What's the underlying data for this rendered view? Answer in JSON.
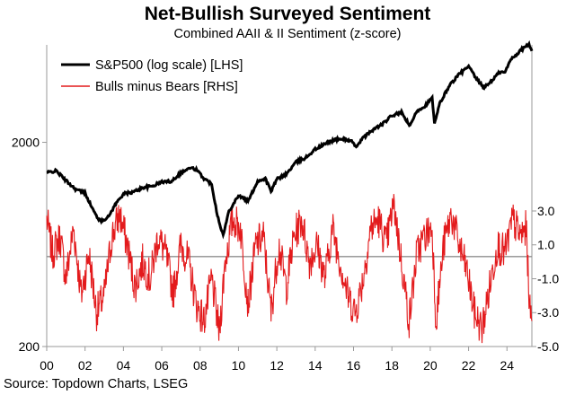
{
  "chart_data": {
    "type": "line",
    "title": "Net-Bullish Surveyed Sentiment",
    "subtitle": "Combined AAII & II Sentiment (z-score)",
    "source": "Source: Topdown Charts, LSEG",
    "x_tick_labels": [
      "00",
      "02",
      "04",
      "06",
      "08",
      "10",
      "12",
      "14",
      "16",
      "18",
      "20",
      "22",
      "24"
    ],
    "x_tick_years": [
      2000,
      2002,
      2004,
      2006,
      2008,
      2010,
      2012,
      2014,
      2016,
      2018,
      2020,
      2022,
      2024
    ],
    "xlim": [
      2000,
      2025.3
    ],
    "left_axis": {
      "scale": "log",
      "ylim": [
        200,
        6000
      ],
      "ticks": [
        200,
        2000
      ],
      "tick_labels": [
        "200",
        "2000"
      ]
    },
    "right_axis": {
      "scale": "linear",
      "ylim": [
        -5,
        12.8
      ],
      "ticks": [
        3,
        1,
        -1,
        -3,
        -5
      ],
      "tick_labels": [
        "3.0",
        "1.0",
        "-1.0",
        "-3.0",
        "-5.0"
      ]
    },
    "legend": {
      "position": "top-left"
    },
    "series": [
      {
        "name": "S&P500 (log scale) [LHS]",
        "axis": "left",
        "color": "#000000",
        "x": [
          2000,
          2000.5,
          2001,
          2001.5,
          2002,
          2002.5,
          2002.8,
          2003.2,
          2003.6,
          2004,
          2004.5,
          2005,
          2005.5,
          2006,
          2006.5,
          2007,
          2007.5,
          2007.8,
          2008.2,
          2008.6,
          2008.9,
          2009.2,
          2009.5,
          2010,
          2010.5,
          2011,
          2011.4,
          2011.7,
          2012,
          2012.5,
          2013,
          2013.5,
          2014,
          2014.5,
          2015,
          2015.5,
          2015.9,
          2016.1,
          2016.5,
          2017,
          2017.5,
          2018,
          2018.5,
          2018.95,
          2019.3,
          2019.7,
          2020.1,
          2020.22,
          2020.5,
          2021,
          2021.5,
          2022,
          2022.4,
          2022.8,
          2023.2,
          2023.6,
          2023.9,
          2024.2,
          2024.6,
          2024.95,
          2025.15,
          2025.3
        ],
        "values": [
          1420,
          1450,
          1300,
          1180,
          1130,
          900,
          820,
          860,
          1000,
          1120,
          1140,
          1200,
          1220,
          1280,
          1290,
          1420,
          1500,
          1470,
          1330,
          1250,
          880,
          700,
          920,
          1100,
          1030,
          1290,
          1330,
          1150,
          1320,
          1400,
          1600,
          1680,
          1850,
          1960,
          2060,
          2080,
          2020,
          1900,
          2100,
          2300,
          2450,
          2700,
          2800,
          2400,
          2850,
          3000,
          3300,
          2450,
          3100,
          3800,
          4300,
          4700,
          4100,
          3700,
          4000,
          4400,
          4400,
          5100,
          5500,
          5900,
          6000,
          5600
        ]
      },
      {
        "name": "Bulls minus Bears [RHS]",
        "axis": "right",
        "color": "#e31a1c",
        "x": [
          2000,
          2000.3,
          2000.7,
          2001,
          2001.4,
          2001.8,
          2002.2,
          2002.6,
          2003,
          2003.4,
          2003.8,
          2004.2,
          2004.6,
          2005,
          2005.4,
          2005.8,
          2006.2,
          2006.6,
          2007,
          2007.4,
          2007.8,
          2008.2,
          2008.6,
          2009,
          2009.3,
          2009.7,
          2010.1,
          2010.5,
          2010.9,
          2011.3,
          2011.7,
          2012.1,
          2012.5,
          2012.9,
          2013.3,
          2013.7,
          2014.1,
          2014.5,
          2014.9,
          2015.3,
          2015.7,
          2016.1,
          2016.5,
          2016.9,
          2017.3,
          2017.7,
          2018.1,
          2018.5,
          2018.9,
          2019.3,
          2019.7,
          2020.1,
          2020.3,
          2020.7,
          2021.1,
          2021.5,
          2021.9,
          2022.3,
          2022.7,
          2023.1,
          2023.5,
          2023.9,
          2024.3,
          2024.7,
          2025.0,
          2025.2,
          2025.3
        ],
        "values": [
          2.5,
          0.5,
          1.5,
          -1.0,
          2.0,
          -2.0,
          0.5,
          -3.0,
          -2.0,
          1.5,
          2.8,
          1.0,
          -1.5,
          0.0,
          -1.0,
          1.5,
          0.5,
          -1.8,
          1.0,
          0.0,
          -2.5,
          -3.5,
          -1.0,
          -4.2,
          0.0,
          2.5,
          2.0,
          -2.5,
          1.0,
          1.5,
          -3.0,
          1.0,
          -1.5,
          1.5,
          2.5,
          0.0,
          1.0,
          -1.0,
          2.0,
          0.0,
          -2.0,
          -3.0,
          -1.0,
          2.0,
          2.5,
          1.0,
          3.5,
          0.0,
          -3.5,
          0.5,
          1.5,
          2.0,
          -3.5,
          1.0,
          2.8,
          1.0,
          -0.5,
          -3.0,
          -4.0,
          -1.5,
          1.0,
          0.5,
          2.5,
          1.5,
          2.0,
          -3.0,
          -3.5
        ]
      }
    ]
  }
}
